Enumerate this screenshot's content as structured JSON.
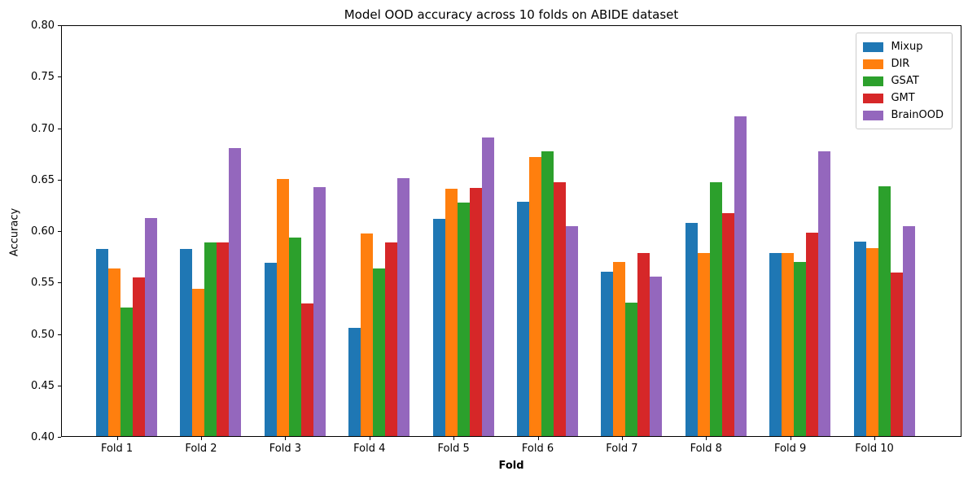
{
  "chart_data": {
    "type": "bar",
    "title": "Model OOD accuracy across 10 folds on ABIDE dataset",
    "xlabel": "Fold",
    "ylabel": "Accuracy",
    "ylim": [
      0.4,
      0.8
    ],
    "yticks": [
      0.4,
      0.45,
      0.5,
      0.55,
      0.6,
      0.65,
      0.7,
      0.75,
      0.8
    ],
    "grid": false,
    "legend_position": "upper right",
    "categories": [
      "Fold 1",
      "Fold 2",
      "Fold 3",
      "Fold 4",
      "Fold 5",
      "Fold 6",
      "Fold 7",
      "Fold 8",
      "Fold 9",
      "Fold 10"
    ],
    "series": [
      {
        "name": "Mixup",
        "color": "#1f77b4",
        "values": [
          0.582,
          0.582,
          0.568,
          0.505,
          0.611,
          0.628,
          0.56,
          0.607,
          0.578,
          0.589
        ]
      },
      {
        "name": "DIR",
        "color": "#ff7f0e",
        "values": [
          0.563,
          0.543,
          0.65,
          0.597,
          0.64,
          0.671,
          0.569,
          0.578,
          0.578,
          0.583
        ]
      },
      {
        "name": "GSAT",
        "color": "#2ca02c",
        "values": [
          0.525,
          0.588,
          0.593,
          0.563,
          0.627,
          0.677,
          0.53,
          0.647,
          0.569,
          0.643
        ]
      },
      {
        "name": "GMT",
        "color": "#d62728",
        "values": [
          0.554,
          0.588,
          0.529,
          0.588,
          0.641,
          0.647,
          0.578,
          0.617,
          0.598,
          0.559
        ]
      },
      {
        "name": "BrainOOD",
        "color": "#9467bd",
        "values": [
          0.612,
          0.68,
          0.642,
          0.651,
          0.69,
          0.604,
          0.555,
          0.711,
          0.677,
          0.604
        ]
      }
    ]
  }
}
